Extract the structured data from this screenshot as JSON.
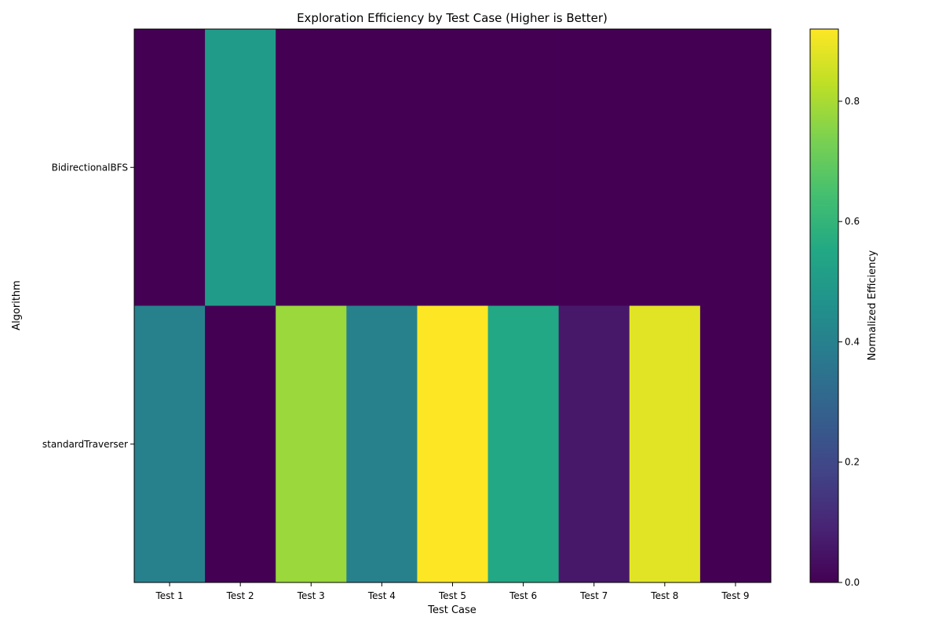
{
  "chart_data": {
    "type": "heatmap",
    "title": "Exploration Efficiency by Test Case (Higher is Better)",
    "xlabel": "Test Case",
    "ylabel": "Algorithm",
    "x_categories": [
      "Test 1",
      "Test 2",
      "Test 3",
      "Test 4",
      "Test 5",
      "Test 6",
      "Test 7",
      "Test 8",
      "Test 9"
    ],
    "y_categories": [
      "BidirectionalBFS",
      "standardTraverser"
    ],
    "values": [
      [
        0.0,
        0.5,
        0.0,
        0.0,
        0.0,
        0.0,
        0.0,
        0.0,
        0.0
      ],
      [
        0.4,
        0.0,
        0.78,
        0.4,
        0.92,
        0.55,
        0.06,
        0.88,
        0.0
      ]
    ],
    "colorbar": {
      "label": "Normalized Efficiency",
      "range": [
        0,
        0.92
      ],
      "ticks": [
        "0.0",
        "0.2",
        "0.4",
        "0.6",
        "0.8"
      ],
      "colormap": "viridis"
    },
    "grid": false
  }
}
